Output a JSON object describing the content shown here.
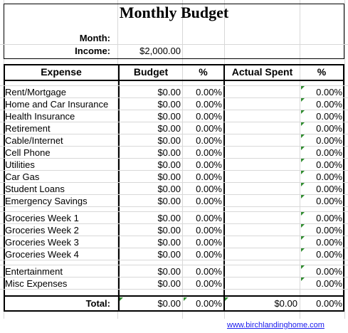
{
  "title": "Monthly Budget",
  "info": {
    "month_label": "Month:",
    "month_value": "",
    "income_label": "Income:",
    "income_value": "$2,000.00"
  },
  "headers": {
    "expense": "Expense",
    "budget": "Budget",
    "pct": "%",
    "actual": "Actual Spent",
    "pct2": "%"
  },
  "rows": [
    {
      "name": "Rent/Mortgage",
      "budget": "$0.00",
      "pct": "0.00%",
      "actual": "",
      "pct2": "0.00%"
    },
    {
      "name": "Home and Car Insurance",
      "budget": "$0.00",
      "pct": "0.00%",
      "actual": "",
      "pct2": "0.00%"
    },
    {
      "name": "Health Insurance",
      "budget": "$0.00",
      "pct": "0.00%",
      "actual": "",
      "pct2": "0.00%"
    },
    {
      "name": "Retirement",
      "budget": "$0.00",
      "pct": "0.00%",
      "actual": "",
      "pct2": "0.00%"
    },
    {
      "name": "Cable/Internet",
      "budget": "$0.00",
      "pct": "0.00%",
      "actual": "",
      "pct2": "0.00%"
    },
    {
      "name": "Cell Phone",
      "budget": "$0.00",
      "pct": "0.00%",
      "actual": "",
      "pct2": "0.00%"
    },
    {
      "name": "Utilities",
      "budget": "$0.00",
      "pct": "0.00%",
      "actual": "",
      "pct2": "0.00%"
    },
    {
      "name": "Car Gas",
      "budget": "$0.00",
      "pct": "0.00%",
      "actual": "",
      "pct2": "0.00%"
    },
    {
      "name": "Student Loans",
      "budget": "$0.00",
      "pct": "0.00%",
      "actual": "",
      "pct2": "0.00%"
    },
    {
      "name": "Emergency Savings",
      "budget": "$0.00",
      "pct": "0.00%",
      "actual": "",
      "pct2": "0.00%"
    },
    {
      "name": "Groceries Week 1",
      "budget": "$0.00",
      "pct": "0.00%",
      "actual": "",
      "pct2": "0.00%"
    },
    {
      "name": "Groceries Week 2",
      "budget": "$0.00",
      "pct": "0.00%",
      "actual": "",
      "pct2": "0.00%"
    },
    {
      "name": "Groceries Week 3",
      "budget": "$0.00",
      "pct": "0.00%",
      "actual": "",
      "pct2": "0.00%"
    },
    {
      "name": "Groceries Week 4",
      "budget": "$0.00",
      "pct": "0.00%",
      "actual": "",
      "pct2": "0.00%"
    },
    {
      "name": "Entertainment",
      "budget": "$0.00",
      "pct": "0.00%",
      "actual": "",
      "pct2": "0.00%"
    },
    {
      "name": "Misc Expenses",
      "budget": "$0.00",
      "pct": "0.00%",
      "actual": "",
      "pct2": "0.00%"
    }
  ],
  "total": {
    "label": "Total:",
    "budget": "$0.00",
    "pct": "0.00%",
    "actual": "$0.00",
    "pct2": "0.00%"
  },
  "footer_link": "www.birchlandinghome.com",
  "colors": {
    "comment_marker": "#2e8b2e",
    "link": "#1a1aee"
  }
}
